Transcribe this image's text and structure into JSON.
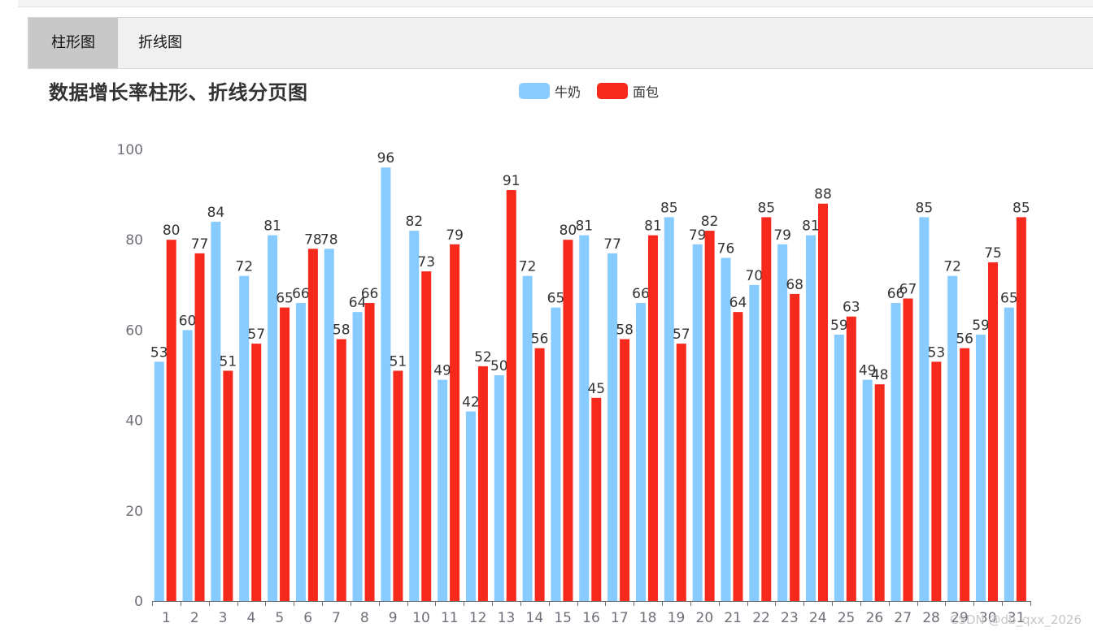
{
  "tabs": [
    {
      "label": "柱形图",
      "active": true
    },
    {
      "label": "折线图",
      "active": false
    }
  ],
  "watermark": "CSDN @db_qxx_2026",
  "chart_data": {
    "type": "bar",
    "title": "数据增长率柱形、折线分页图",
    "categories": [
      "1",
      "2",
      "3",
      "4",
      "5",
      "6",
      "7",
      "8",
      "9",
      "10",
      "11",
      "12",
      "13",
      "14",
      "15",
      "16",
      "17",
      "18",
      "19",
      "20",
      "21",
      "22",
      "23",
      "24",
      "25",
      "26",
      "27",
      "28",
      "29",
      "30",
      "31"
    ],
    "series": [
      {
        "name": "牛奶",
        "color": "#87cbff",
        "values": [
          53,
          60,
          84,
          72,
          81,
          66,
          78,
          64,
          96,
          82,
          49,
          42,
          50,
          72,
          65,
          81,
          77,
          66,
          85,
          79,
          76,
          70,
          79,
          81,
          59,
          49,
          66,
          85,
          72,
          59,
          65
        ]
      },
      {
        "name": "面包",
        "color": "#f5291c",
        "values": [
          80,
          77,
          51,
          57,
          65,
          78,
          58,
          66,
          51,
          73,
          79,
          52,
          91,
          56,
          80,
          45,
          58,
          81,
          57,
          82,
          64,
          85,
          68,
          88,
          63,
          48,
          67,
          53,
          56,
          75,
          85
        ]
      }
    ],
    "ylim": [
      0,
      100
    ],
    "yticks": [
      0,
      20,
      40,
      60,
      80,
      100
    ],
    "legend_position": "top-center",
    "xlabel": "",
    "ylabel": ""
  }
}
